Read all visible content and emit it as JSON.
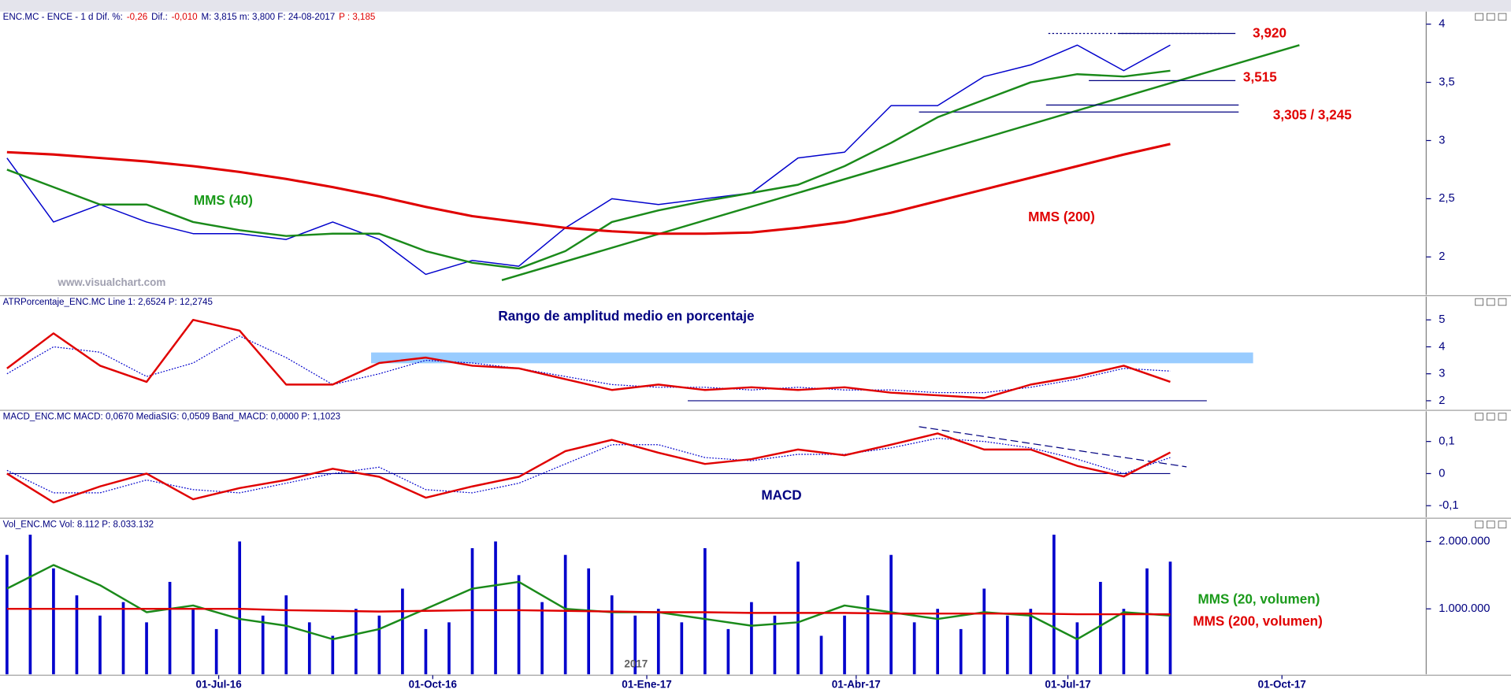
{
  "chart_data": [
    {
      "type": "line",
      "title_parts": [
        {
          "text": "ENC.MC - ENCE -  1 d  Dif. %:",
          "color": "#000080"
        },
        {
          "text": "-0,26",
          "color": "#e00000"
        },
        {
          "text": "Dif.:",
          "color": "#000080"
        },
        {
          "text": "-0,010",
          "color": "#e00000"
        },
        {
          "text": "M: 3,815  m: 3,800  F: 24-08-2017",
          "color": "#000080"
        },
        {
          "text": "P : 3,185",
          "color": "#e00000"
        }
      ],
      "x": [
        0,
        20,
        40,
        60,
        80,
        100,
        120,
        140,
        160,
        180,
        200,
        220,
        240,
        260,
        280,
        300,
        320,
        340,
        360,
        380,
        400,
        420,
        440,
        460,
        480,
        500
      ],
      "xlim": [
        -3,
        610
      ],
      "ylim": [
        1.675,
        4.108
      ],
      "yticks": [
        2,
        {
          "value": 2.5,
          "label": "2,5"
        },
        3,
        {
          "value": 3.5,
          "label": "3,5"
        },
        4
      ],
      "series": [
        {
          "style": "line",
          "color": "#0000cc",
          "line_width": 1.2,
          "values": [
            2.85,
            2.3,
            2.45,
            2.3,
            2.2,
            2.2,
            2.15,
            2.3,
            2.15,
            1.85,
            1.97,
            1.92,
            2.25,
            2.5,
            2.45,
            2.5,
            2.55,
            2.85,
            2.9,
            3.3,
            3.3,
            3.55,
            3.65,
            3.82,
            3.6,
            3.82
          ]
        },
        {
          "style": "line",
          "color": "#1a8a1a",
          "line_width": 2,
          "values": [
            2.75,
            2.6,
            2.45,
            2.45,
            2.3,
            2.23,
            2.18,
            2.2,
            2.2,
            2.05,
            1.95,
            1.9,
            2.05,
            2.3,
            2.4,
            2.48,
            2.55,
            2.62,
            2.78,
            2.98,
            3.2,
            3.35,
            3.5,
            3.57,
            3.55,
            3.6
          ]
        },
        {
          "style": "line",
          "color": "#e00000",
          "line_width": 2.5,
          "values": [
            2.9,
            2.88,
            2.85,
            2.82,
            2.78,
            2.73,
            2.67,
            2.6,
            2.52,
            2.43,
            2.35,
            2.3,
            2.25,
            2.22,
            2.2,
            2.2,
            2.21,
            2.25,
            2.3,
            2.38,
            2.48,
            2.58,
            2.68,
            2.78,
            2.88,
            2.97
          ]
        }
      ],
      "lines": [
        {
          "x": [
            212.7,
            555.5
          ],
          "y": [
            1.8,
            3.82
          ],
          "color": "#1a8a1a",
          "dash": false
        },
        {
          "x": [
            447.6,
            522
          ],
          "y": [
            3.92,
            3.92
          ],
          "color": "#000080",
          "dash": true
        },
        {
          "x": [
            477.8,
            528
          ],
          "y": [
            3.92,
            3.92
          ],
          "color": "#000080",
          "dash": false
        },
        {
          "x": [
            465,
            528
          ],
          "y": [
            3.515,
            3.515
          ],
          "color": "#000080",
          "dash": false
        },
        {
          "x": [
            446.6,
            529.4
          ],
          "y": [
            3.305,
            3.305
          ],
          "color": "#000080",
          "dash": false
        },
        {
          "x": [
            392,
            529.4
          ],
          "y": [
            3.245,
            3.245
          ],
          "color": "#000080",
          "dash": false
        }
      ],
      "annotations": [
        {
          "text": "3,920",
          "color": "#e00000"
        },
        {
          "text": "3,515",
          "color": "#e00000"
        },
        {
          "text": "3,305 / 3,245",
          "color": "#e00000"
        },
        {
          "text": "MMS (40)",
          "color": "#1a9a1a"
        },
        {
          "text": "MMS (200)",
          "color": "#e00000"
        },
        {
          "text": "www.visualchart.com",
          "color": "#a0a0b0"
        }
      ]
    },
    {
      "type": "line",
      "title_parts": [
        {
          "text": "ATRPorcentaje_ENC.MC  Line 1: 2,6524  P: 12,2745",
          "color": "#000080"
        }
      ],
      "x": [
        0,
        20,
        40,
        60,
        80,
        100,
        120,
        140,
        160,
        180,
        200,
        220,
        240,
        260,
        280,
        300,
        320,
        340,
        360,
        380,
        400,
        420,
        440,
        460,
        480,
        500
      ],
      "xlim": [
        -3,
        610
      ],
      "ylim": [
        1.68,
        5.86
      ],
      "yticks": [
        2,
        3,
        4,
        5
      ],
      "bands": [
        {
          "x": [
            156.5,
            535.6
          ],
          "y": [
            3.39,
            3.79
          ],
          "color": "#99ccff"
        }
      ],
      "series": [
        {
          "style": "dotted",
          "color": "#0000cc",
          "line_width": 1,
          "values": [
            3.0,
            4.0,
            3.8,
            2.9,
            3.4,
            4.4,
            3.6,
            2.6,
            3.0,
            3.5,
            3.4,
            3.2,
            2.9,
            2.6,
            2.5,
            2.5,
            2.4,
            2.5,
            2.4,
            2.4,
            2.3,
            2.3,
            2.5,
            2.8,
            3.2,
            3.1
          ]
        },
        {
          "style": "line",
          "color": "#e00000",
          "line_width": 2,
          "values": [
            3.2,
            4.5,
            3.3,
            2.7,
            5.0,
            4.6,
            2.6,
            2.6,
            3.4,
            3.6,
            3.3,
            3.2,
            2.8,
            2.4,
            2.6,
            2.4,
            2.5,
            2.4,
            2.5,
            2.3,
            2.2,
            2.1,
            2.6,
            2.9,
            3.3,
            2.7
          ]
        }
      ],
      "lines": [
        {
          "x": [
            292.6,
            515.7
          ],
          "y": [
            2,
            2
          ],
          "color": "#000080",
          "dash": false
        }
      ],
      "annotations": [
        {
          "text": "Rango de amplitud medio en porcentaje",
          "color": "#000080"
        }
      ]
    },
    {
      "type": "line",
      "title_parts": [
        {
          "text": "MACD_ENC.MC  MACD: 0,0670  MediaSIG: 0,0509  Band_MACD: 0,0000  P: 1,1023",
          "color": "#000080"
        }
      ],
      "x": [
        0,
        20,
        40,
        60,
        80,
        100,
        120,
        140,
        160,
        180,
        200,
        220,
        240,
        260,
        280,
        300,
        320,
        340,
        360,
        380,
        400,
        420,
        440,
        460,
        480,
        500
      ],
      "xlim": [
        -3,
        610
      ],
      "ylim": [
        -0.136,
        0.194
      ],
      "yticks": [
        {
          "value": -0.1,
          "label": "-0,1"
        },
        0,
        {
          "value": 0.1,
          "label": "0,1"
        }
      ],
      "lines": [
        {
          "x": [
            0,
            500
          ],
          "y": [
            0,
            0
          ],
          "color": "#000080",
          "dash": false
        },
        {
          "x": [
            392,
            507
          ],
          "y": [
            0.146,
            0.021
          ],
          "color": "#000080",
          "dash": true
        }
      ],
      "series": [
        {
          "style": "dotted",
          "color": "#0000cc",
          "line_width": 1,
          "values": [
            0.01,
            -0.06,
            -0.06,
            -0.02,
            -0.05,
            -0.06,
            -0.03,
            0.0,
            0.02,
            -0.05,
            -0.06,
            -0.03,
            0.03,
            0.09,
            0.09,
            0.05,
            0.04,
            0.06,
            0.06,
            0.08,
            0.11,
            0.1,
            0.08,
            0.045,
            0.0,
            0.05
          ]
        },
        {
          "style": "line",
          "color": "#e00000",
          "line_width": 2,
          "values": [
            0,
            -0.09,
            -0.04,
            0,
            -0.08,
            -0.045,
            -0.02,
            0.015,
            -0.01,
            -0.075,
            -0.04,
            -0.01,
            0.07,
            0.105,
            0.065,
            0.03,
            0.045,
            0.075,
            0.057,
            0.09,
            0.125,
            0.075,
            0.075,
            0.024,
            -0.009,
            0.066
          ]
        }
      ],
      "annotations": [
        {
          "text": "MACD",
          "color": "#000080"
        }
      ]
    },
    {
      "type": "bar",
      "title_parts": [
        {
          "text": "Vol_ENC.MC  Vol: 8.112  P: 8.033.132",
          "color": "#000080"
        }
      ],
      "x": [
        0,
        10,
        20,
        30,
        40,
        50,
        60,
        70,
        80,
        90,
        100,
        110,
        120,
        130,
        140,
        150,
        160,
        170,
        180,
        190,
        200,
        210,
        220,
        230,
        240,
        250,
        260,
        270,
        280,
        290,
        300,
        310,
        320,
        330,
        340,
        350,
        360,
        370,
        380,
        390,
        400,
        410,
        420,
        430,
        440,
        450,
        460,
        470,
        480,
        490,
        500
      ],
      "xlim": [
        -3,
        610
      ],
      "ylim": [
        30000,
        2330000
      ],
      "yticks": [
        {
          "value": 1000000,
          "label": "1.000.000"
        },
        {
          "value": 2000000,
          "label": "2.000.000"
        }
      ],
      "xticks": [
        {
          "value": 91,
          "label": "01-Jul-16"
        },
        {
          "value": 183,
          "label": "01-Oct-16"
        },
        {
          "value": 275,
          "label": "01-Ene-17"
        },
        {
          "value": 365,
          "label": "01-Abr-17"
        },
        {
          "value": 456,
          "label": "01-Jul-17"
        },
        {
          "value": 548,
          "label": "01-Oct-17"
        }
      ],
      "year_label": "2017",
      "series": [
        {
          "style": "bar",
          "color": "#0000cc",
          "values": [
            1800000,
            2100000,
            1600000,
            1200000,
            900000,
            1100000,
            800000,
            1400000,
            1000000,
            700000,
            2000000,
            900000,
            1200000,
            800000,
            600000,
            1000000,
            900000,
            1300000,
            700000,
            800000,
            1900000,
            2000000,
            1500000,
            1100000,
            1800000,
            1600000,
            1200000,
            900000,
            1000000,
            800000,
            1900000,
            700000,
            1100000,
            900000,
            1700000,
            600000,
            900000,
            1200000,
            1800000,
            800000,
            1000000,
            700000,
            1300000,
            900000,
            1000000,
            2100000,
            800000,
            1400000,
            1000000,
            1600000,
            1700000
          ]
        },
        {
          "style": "line",
          "color": "#1a8a1a",
          "line_width": 2,
          "x": [
            0,
            20,
            40,
            60,
            80,
            100,
            120,
            140,
            160,
            180,
            200,
            220,
            240,
            260,
            280,
            300,
            320,
            340,
            360,
            380,
            400,
            420,
            440,
            460,
            480,
            500
          ],
          "values": [
            1300000,
            1650000,
            1350000,
            950000,
            1050000,
            850000,
            750000,
            550000,
            700000,
            1000000,
            1300000,
            1400000,
            1000000,
            950000,
            950000,
            850000,
            750000,
            800000,
            1050000,
            950000,
            850000,
            950000,
            900000,
            550000,
            950000,
            900000
          ]
        },
        {
          "style": "line",
          "color": "#e00000",
          "line_width": 2,
          "x": [
            0,
            20,
            40,
            60,
            80,
            100,
            120,
            140,
            160,
            180,
            200,
            220,
            240,
            260,
            280,
            300,
            320,
            340,
            360,
            380,
            400,
            420,
            440,
            460,
            480,
            500
          ],
          "values": [
            1000000,
            1000000,
            1000000,
            1000000,
            1000000,
            1000000,
            980000,
            970000,
            960000,
            970000,
            980000,
            980000,
            970000,
            960000,
            950000,
            950000,
            940000,
            940000,
            940000,
            930000,
            930000,
            930000,
            930000,
            920000,
            920000,
            920000
          ]
        }
      ],
      "annotations": [
        {
          "text": "MMS (20, volumen)",
          "color": "#1a9a1a"
        },
        {
          "text": "MMS (200, volumen)",
          "color": "#e00000"
        }
      ]
    }
  ]
}
